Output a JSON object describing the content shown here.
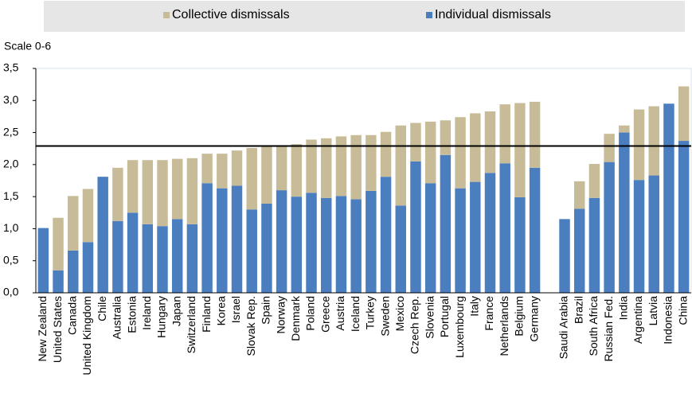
{
  "chart_data": {
    "type": "stacked_bar",
    "y_label": "Scale 0-6",
    "categories": [
      "New Zealand",
      "United States",
      "Canada",
      "United Kingdom",
      "Chile",
      "Australia",
      "Estonia",
      "Ireland",
      "Hungary",
      "Japan",
      "Switzerland",
      "Finland",
      "Korea",
      "Israel",
      "Slovak Rep.",
      "Spain",
      "Norway",
      "Denmark",
      "Poland",
      "Greece",
      "Austria",
      "Iceland",
      "Turkey",
      "Sweden",
      "Mexico",
      "Czech Rep.",
      "Slovenia",
      "Portugal",
      "Luxembourg",
      "Italy",
      "France",
      "Netherlands",
      "Belgium",
      "Germany",
      null,
      "Saudi Arabia",
      "Brazil",
      "South Africa",
      "Russian Fed.",
      "India",
      "Argentina",
      "Latvia",
      "Indonesia",
      "China"
    ],
    "series": [
      {
        "name": "Individual dismissals",
        "color": "#4a7ebf",
        "values": [
          1.01,
          0.35,
          0.66,
          0.79,
          1.81,
          1.12,
          1.25,
          1.07,
          1.04,
          1.15,
          1.07,
          1.71,
          1.63,
          1.67,
          1.3,
          1.39,
          1.6,
          1.5,
          1.56,
          1.48,
          1.51,
          1.46,
          1.59,
          1.81,
          1.36,
          2.05,
          1.71,
          2.15,
          1.63,
          1.73,
          1.87,
          2.02,
          1.49,
          1.95,
          null,
          1.15,
          1.31,
          1.48,
          2.04,
          2.5,
          1.76,
          1.83,
          2.95,
          2.37
        ]
      },
      {
        "name": "Collective dismissals",
        "color": "#c8bc98",
        "values": [
          0,
          0.82,
          0.85,
          0.83,
          0,
          0.83,
          0.82,
          1.0,
          1.03,
          0.94,
          1.03,
          0.46,
          0.54,
          0.55,
          0.96,
          0.89,
          0.69,
          0.82,
          0.83,
          0.93,
          0.93,
          1.0,
          0.87,
          0.7,
          1.25,
          0.6,
          0.96,
          0.54,
          1.11,
          1.07,
          0.96,
          0.92,
          1.47,
          1.03,
          null,
          0,
          0.43,
          0.53,
          0.44,
          0.11,
          1.1,
          1.08,
          0,
          0.85
        ]
      }
    ],
    "reference_line": 2.29,
    "ylim": [
      0,
      3.5
    ],
    "yticks": [
      {
        "value": 0,
        "label": "0,0"
      },
      {
        "value": 0.5,
        "label": "0,5"
      },
      {
        "value": 1,
        "label": "1,0"
      },
      {
        "value": 1.5,
        "label": "1,5"
      },
      {
        "value": 2,
        "label": "2,0"
      },
      {
        "value": 2.5,
        "label": "2,5"
      },
      {
        "value": 3,
        "label": "3,0"
      },
      {
        "value": 3.5,
        "label": "3,5"
      }
    ],
    "grid": false
  }
}
